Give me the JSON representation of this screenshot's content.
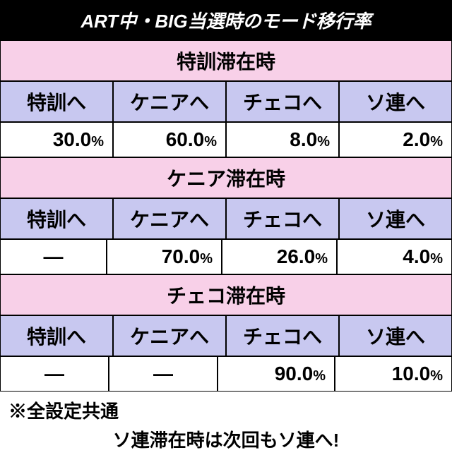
{
  "title": "ART中・BIG当選時のモード移行率",
  "sections": [
    {
      "header": "特訓滞在時",
      "columns": [
        "特訓へ",
        "ケニアへ",
        "チェコへ",
        "ソ連へ"
      ],
      "values": [
        "30.0",
        "60.0",
        "8.0",
        "2.0"
      ],
      "dashes": [
        false,
        false,
        false,
        false
      ]
    },
    {
      "header": "ケニア滞在時",
      "columns": [
        "特訓へ",
        "ケニアへ",
        "チェコへ",
        "ソ連へ"
      ],
      "values": [
        "—",
        "70.0",
        "26.0",
        "4.0"
      ],
      "dashes": [
        true,
        false,
        false,
        false
      ]
    },
    {
      "header": "チェコ滞在時",
      "columns": [
        "特訓へ",
        "ケニアへ",
        "チェコへ",
        "ソ連へ"
      ],
      "values": [
        "—",
        "—",
        "90.0",
        "10.0"
      ],
      "dashes": [
        true,
        true,
        false,
        false
      ]
    }
  ],
  "footnote1": "※全設定共通",
  "footnote2": "ソ連滞在時は次回もソ連へ!",
  "pct_symbol": "%",
  "colors": {
    "title_bg": "#000000",
    "title_fg": "#ffffff",
    "section_bg": "#f8d0e8",
    "colhead_bg": "#c8c8f0",
    "cell_bg": "#ffffff",
    "border": "#000000"
  }
}
